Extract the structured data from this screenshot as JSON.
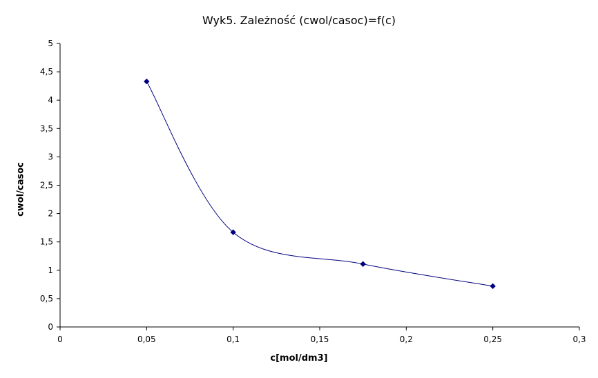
{
  "chart_data": {
    "type": "scatter",
    "title": "Wyk5. Zależność (cwol/casoc)=f(c)",
    "xlabel": "c[mol/dm3]",
    "ylabel": "cwol/casoc",
    "xlim": [
      0,
      0.3
    ],
    "ylim": [
      0,
      5
    ],
    "x_ticks": [
      "0",
      "0,05",
      "0,1",
      "0,15",
      "0,2",
      "0,25",
      "0,3"
    ],
    "y_ticks": [
      "0",
      "0,5",
      "1",
      "1,5",
      "2",
      "2,5",
      "3",
      "3,5",
      "4",
      "4,5",
      "5"
    ],
    "grid": false,
    "smoothed_line": true,
    "line_color": "#000080",
    "marker": "diamond",
    "series": [
      {
        "x": [
          0.05,
          0.1,
          0.175,
          0.25
        ],
        "y": [
          4.33,
          1.67,
          1.11,
          0.72
        ]
      }
    ]
  }
}
